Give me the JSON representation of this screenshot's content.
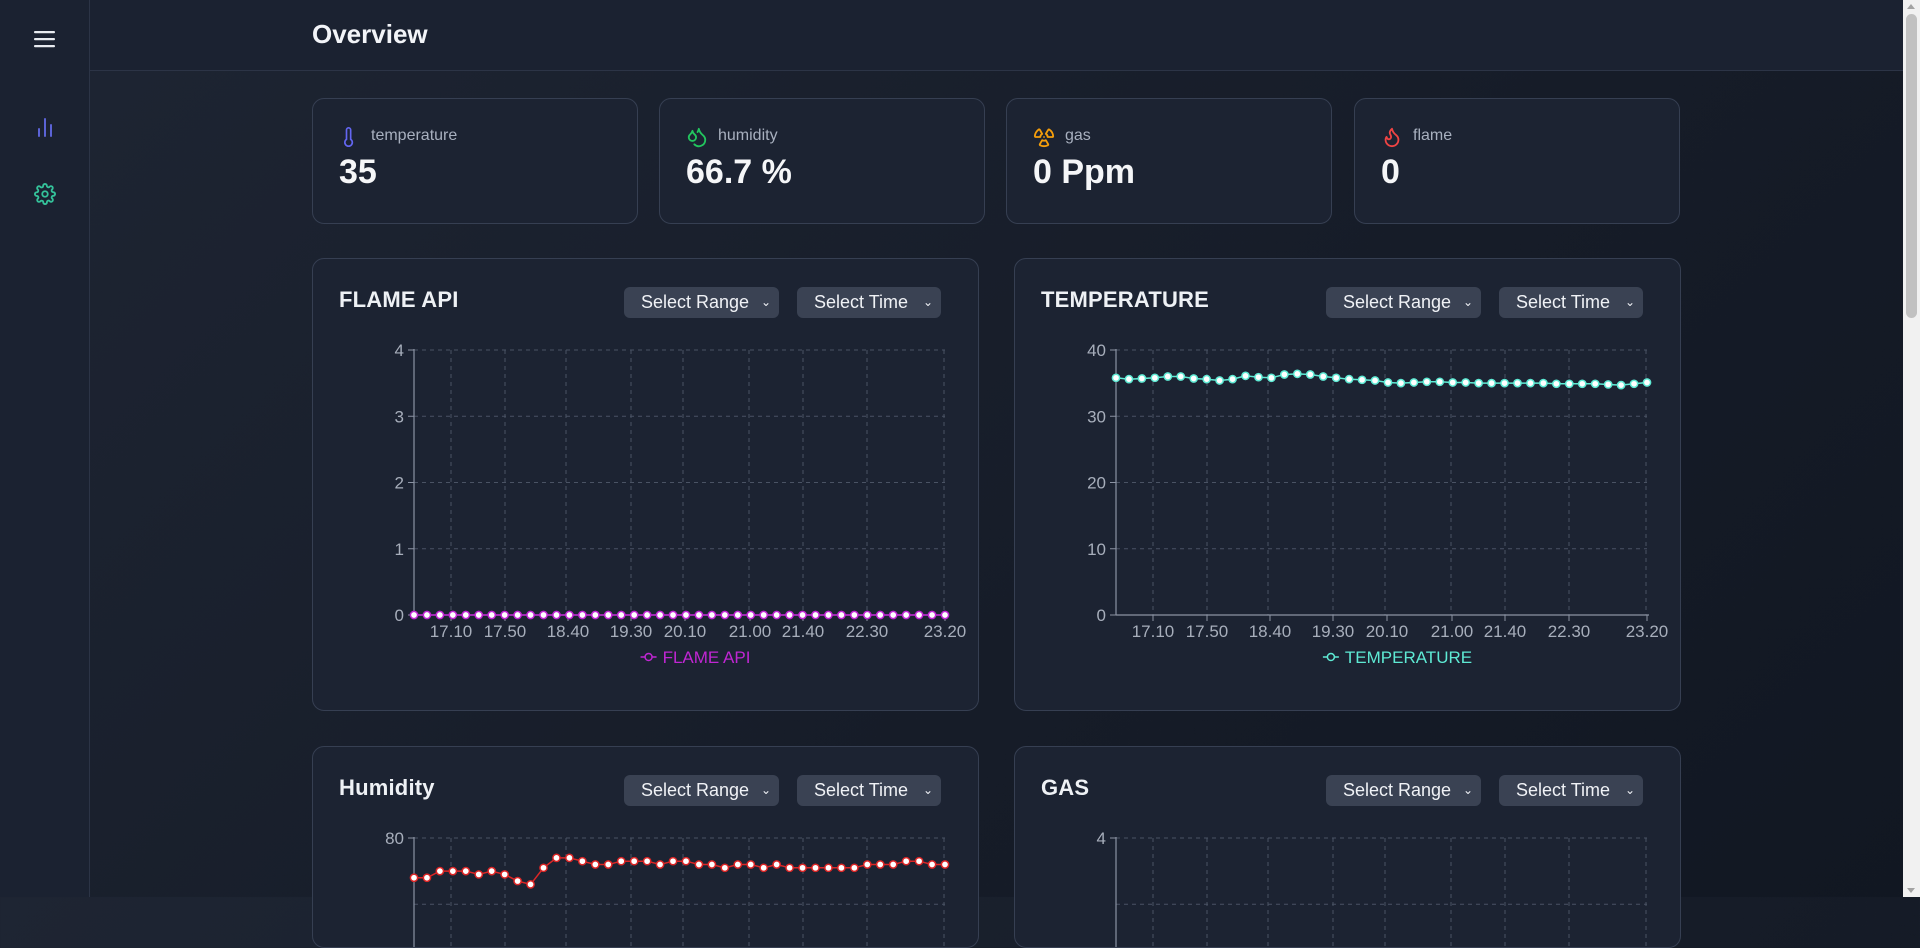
{
  "page": {
    "title": "Overview"
  },
  "sidebar": {
    "menu_icon": "hamburger-menu-icon",
    "items": [
      {
        "icon": "bar-chart-icon",
        "color": "#5b63d6"
      },
      {
        "icon": "gear-icon",
        "color": "#34c29a"
      }
    ]
  },
  "stats": [
    {
      "label": "temperature",
      "value": "35",
      "icon": "thermometer-icon",
      "color": "#6366f1"
    },
    {
      "label": "humidity",
      "value": "66.7 %",
      "icon": "droplets-icon",
      "color": "#22c55e"
    },
    {
      "label": "gas",
      "value": "0 Ppm",
      "icon": "radiation-icon",
      "color": "#f59e0b"
    },
    {
      "label": "flame",
      "value": "0",
      "icon": "flame-icon",
      "color": "#ef4444"
    }
  ],
  "controls": {
    "range_label": "Select Range",
    "time_label": "Select Time"
  },
  "charts": [
    {
      "title": "FLAME API"
    },
    {
      "title": "TEMPERATURE"
    },
    {
      "title": "Humidity"
    },
    {
      "title": "GAS"
    }
  ],
  "chart_data": [
    {
      "type": "line",
      "title": "FLAME API",
      "x_tick_labels": [
        "17.10",
        "17.50",
        "18.40",
        "19.30",
        "20.10",
        "21.00",
        "21.40",
        "22.30",
        "23.20"
      ],
      "ylim": [
        0,
        4
      ],
      "yticks": [
        0,
        1,
        2,
        3,
        4
      ],
      "grid": true,
      "legend": "bottom",
      "series": [
        {
          "name": "FLAME API",
          "color": "#c026d3",
          "values": [
            0,
            0,
            0,
            0,
            0,
            0,
            0,
            0,
            0,
            0,
            0,
            0,
            0,
            0,
            0,
            0,
            0,
            0,
            0,
            0,
            0,
            0,
            0,
            0,
            0,
            0,
            0,
            0,
            0,
            0,
            0,
            0,
            0,
            0,
            0,
            0,
            0,
            0,
            0,
            0,
            0,
            0
          ]
        }
      ]
    },
    {
      "type": "line",
      "title": "TEMPERATURE",
      "x_tick_labels": [
        "17.10",
        "17.50",
        "18.40",
        "19.30",
        "20.10",
        "21.00",
        "21.40",
        "22.30",
        "23.20"
      ],
      "ylim": [
        0,
        40
      ],
      "yticks": [
        0,
        10,
        20,
        30,
        40
      ],
      "grid": true,
      "legend": "bottom",
      "series": [
        {
          "name": "TEMPERATURE",
          "color": "#5eead4",
          "values": [
            35.8,
            35.6,
            35.7,
            35.8,
            36.0,
            36.0,
            35.7,
            35.6,
            35.4,
            35.6,
            36.1,
            35.9,
            35.8,
            36.3,
            36.4,
            36.3,
            36.0,
            35.8,
            35.6,
            35.5,
            35.4,
            35.1,
            35.0,
            35.1,
            35.2,
            35.2,
            35.1,
            35.1,
            35.0,
            35.0,
            35.0,
            35.0,
            35.0,
            35.0,
            34.9,
            34.9,
            34.9,
            34.9,
            34.8,
            34.7,
            34.9,
            35.1
          ]
        }
      ]
    },
    {
      "type": "line",
      "title": "Humidity",
      "ylim": [
        0,
        80
      ],
      "yticks": [
        80
      ],
      "grid": true,
      "series": [
        {
          "name": "Humidity",
          "color": "#dc2626",
          "values": [
            68,
            68,
            70,
            70,
            70,
            69,
            70,
            69,
            67,
            66,
            71,
            74,
            74,
            73,
            72,
            72,
            73,
            73,
            73,
            72,
            73,
            73,
            72,
            72,
            71,
            72,
            72,
            71,
            72,
            71,
            71,
            71,
            71,
            71,
            71,
            72,
            72,
            72,
            73,
            73,
            72,
            72
          ]
        }
      ]
    },
    {
      "type": "line",
      "title": "GAS",
      "ylim": [
        0,
        4
      ],
      "yticks": [
        4
      ],
      "grid": true,
      "series": []
    }
  ]
}
